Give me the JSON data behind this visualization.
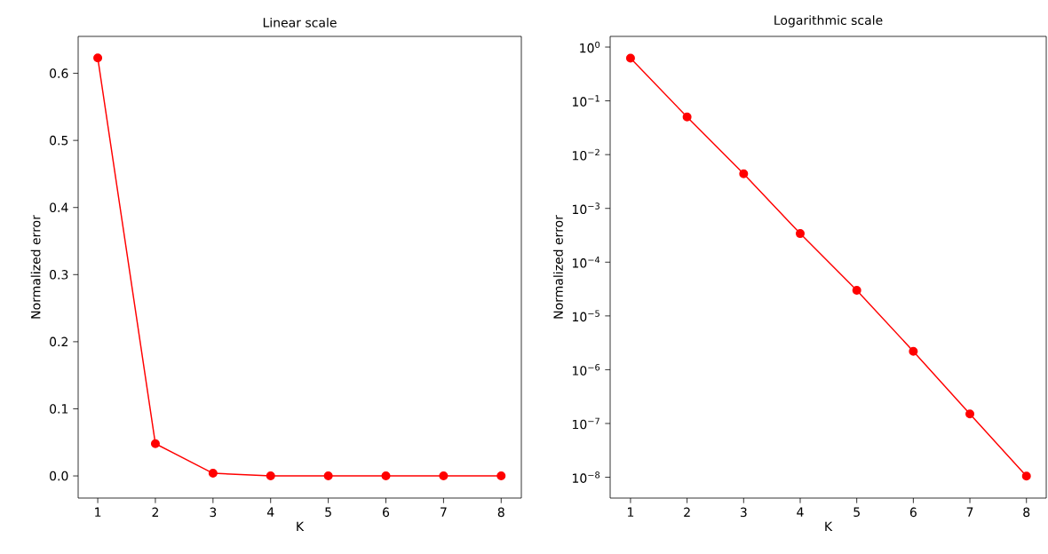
{
  "chart_data": [
    {
      "type": "line",
      "title": "Linear scale",
      "xlabel": "K",
      "ylabel": "Normalized error",
      "x": [
        1,
        2,
        3,
        4,
        5,
        6,
        7,
        8
      ],
      "series": [
        {
          "color": "#ff0000",
          "values": [
            0.623,
            0.048,
            0.004,
            0,
            0,
            0,
            0,
            0
          ]
        }
      ],
      "marker": "circle",
      "xlim": [
        0.66,
        8.35
      ],
      "ylim": [
        -0.033,
        0.655
      ],
      "xticks": [
        1,
        2,
        3,
        4,
        5,
        6,
        7,
        8
      ],
      "yticks": [
        {
          "value": 0,
          "label": "0.0"
        },
        0.1,
        0.2,
        0.3,
        0.4,
        0.5,
        0.6
      ]
    },
    {
      "type": "line",
      "title": "Logarithmic scale",
      "xlabel": "K",
      "ylabel": "Normalized error",
      "x": [
        1,
        2,
        3,
        4,
        5,
        6,
        7,
        8
      ],
      "series": [
        {
          "color": "#ff0000",
          "values": [
            0.623,
            0.05,
            0.0044,
            0.00034,
            3e-05,
            2.2e-06,
            1.5e-07,
            1.05e-08
          ]
        }
      ],
      "marker": "circle",
      "log": "y",
      "xlim": [
        0.64,
        8.35
      ],
      "ylim": [
        4.1e-09,
        1.58
      ],
      "xticks": [
        1,
        2,
        3,
        4,
        5,
        6,
        7,
        8
      ],
      "yticks": [
        {
          "value": 1,
          "label": "10$^{0}$"
        },
        {
          "value": 0.1,
          "label": "10$^{−1}$"
        },
        {
          "value": 0.01,
          "label": "10$^{−2}$"
        },
        {
          "value": 0.001,
          "label": "10$^{−3}$"
        },
        {
          "value": 0.0001,
          "label": "10$^{−4}$"
        },
        {
          "value": 1e-05,
          "label": "10$^{−5}$"
        },
        {
          "value": 1e-06,
          "label": "10$^{−6}$"
        },
        {
          "value": 1e-07,
          "label": "10$^{−7}$"
        },
        {
          "value": 1e-08,
          "label": "10$^{−8}$"
        }
      ]
    }
  ]
}
